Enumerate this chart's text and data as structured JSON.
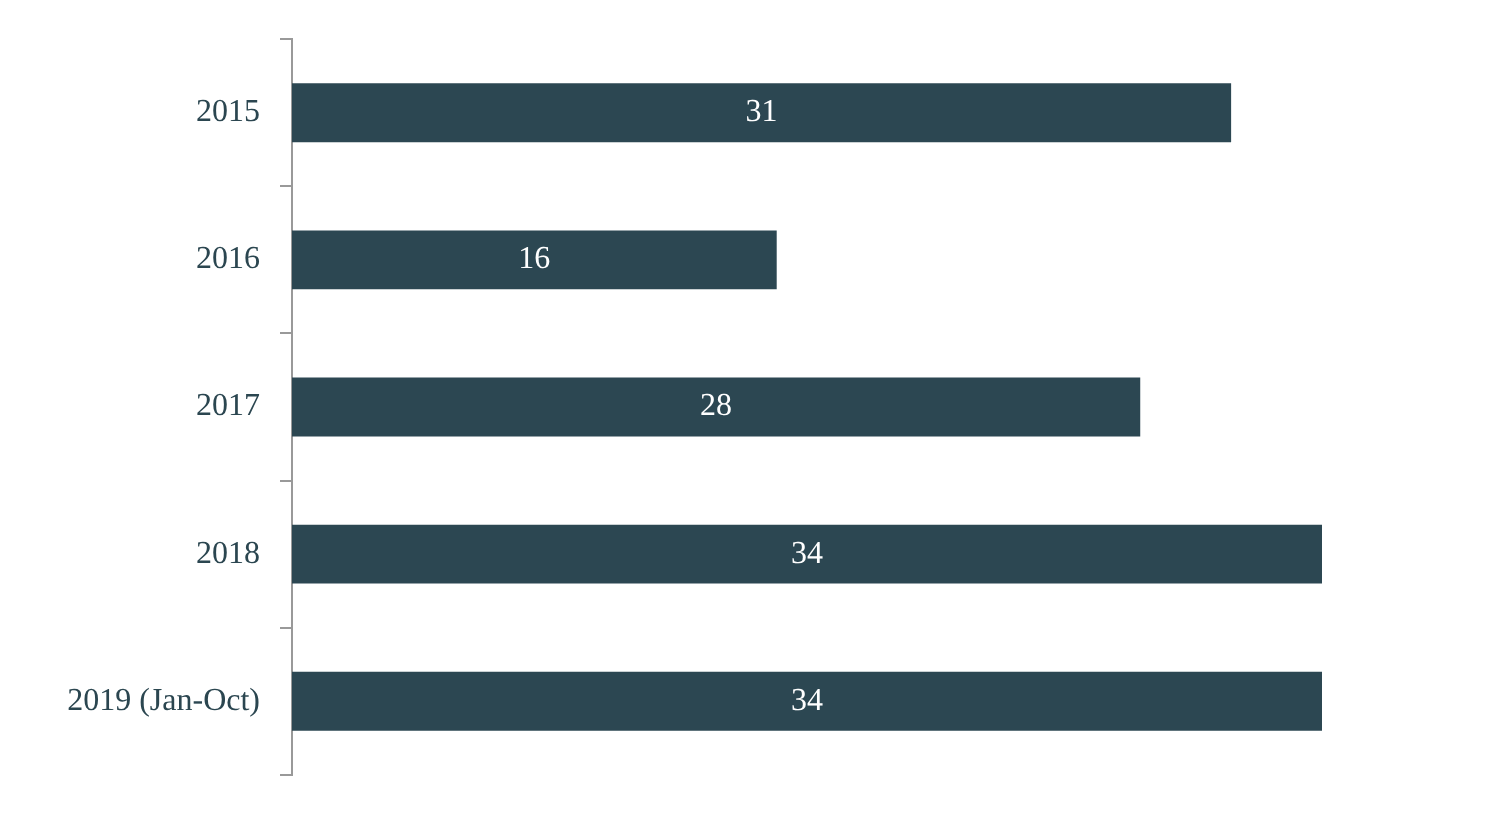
{
  "chart_data": {
    "type": "bar",
    "orientation": "horizontal",
    "categories": [
      "2015",
      "2016",
      "2017",
      "2018",
      "2019 (Jan-Oct)"
    ],
    "values": [
      31,
      16,
      28,
      34,
      34
    ],
    "color": "#2c4752",
    "data_labels": true,
    "legend": false
  }
}
